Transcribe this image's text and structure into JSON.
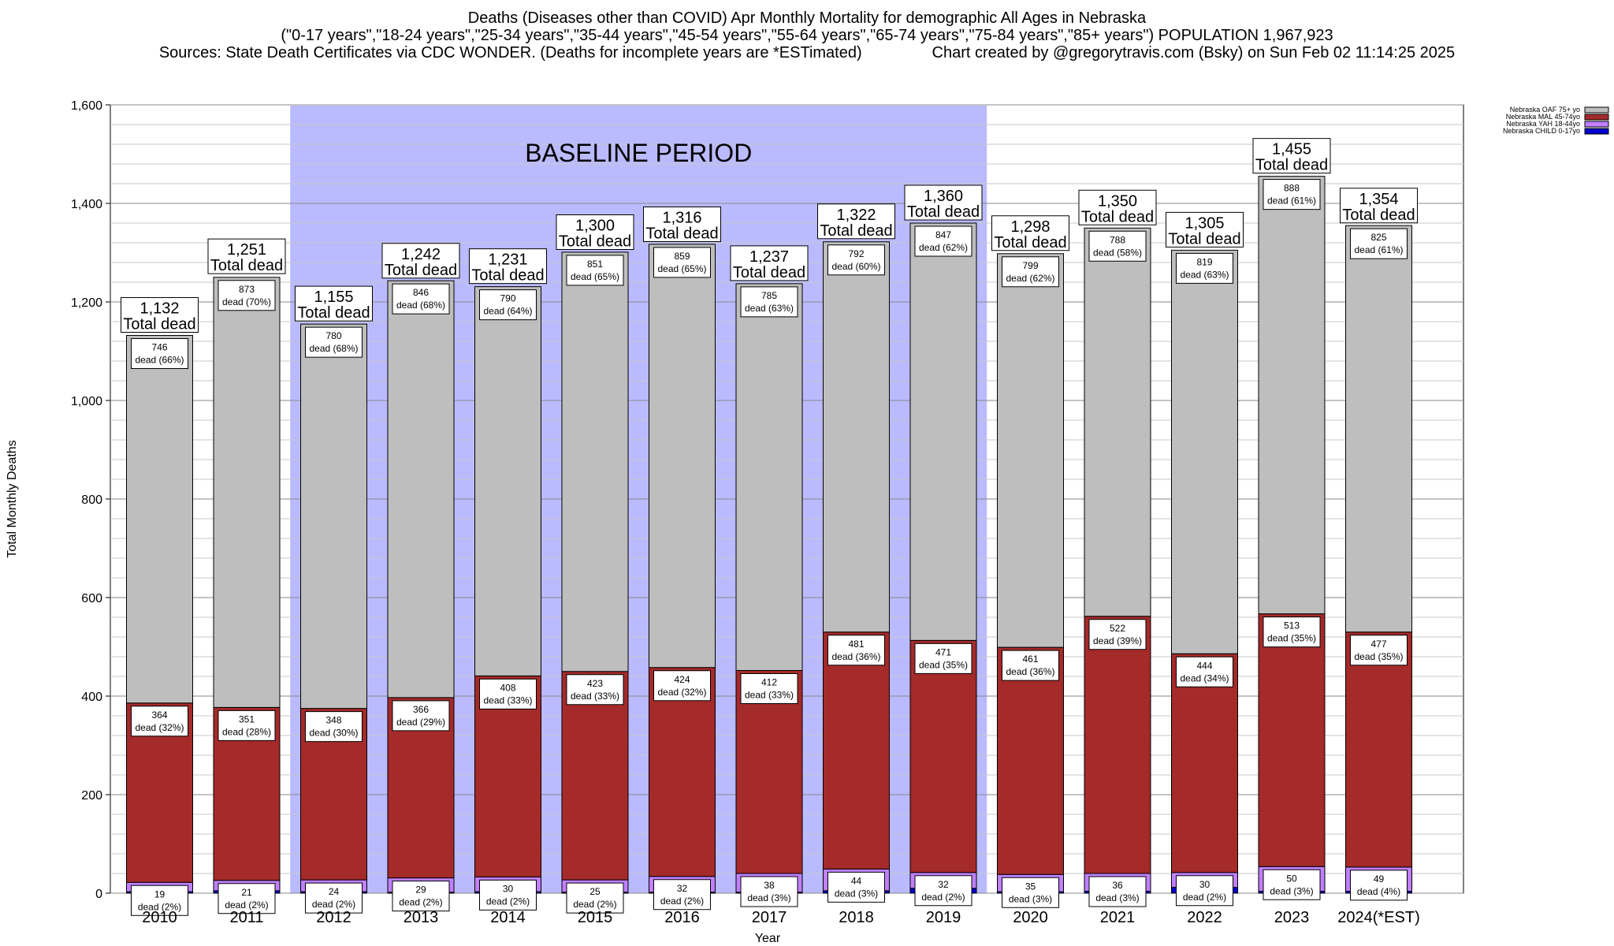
{
  "header": {
    "title": "Deaths (Diseases other than COVID) Apr Monthly Mortality for demographic All Ages in Nebraska",
    "subtitle": "(\"0-17 years\",\"18-24 years\",\"25-34 years\",\"35-44 years\",\"45-54 years\",\"55-64 years\",\"65-74 years\",\"75-84 years\",\"85+ years\") POPULATION 1,967,923",
    "sources": "Sources: State Death Certificates via CDC WONDER. (Deaths for incomplete years are *ESTimated)",
    "credit": "Chart created by @gregorytravis.com (Bsky) on Sun Feb 02 11:14:25 2025"
  },
  "colors": {
    "oaf": "#bebebe",
    "mal": "#a52a2a",
    "yah": "#c080ff",
    "child": "#0000cd",
    "baseline": "#babaff"
  },
  "chart_data": {
    "type": "bar",
    "stacked": true,
    "xlabel": "Year",
    "ylabel": "Total Monthly Deaths",
    "ylim": [
      0,
      1600
    ],
    "yticks": [
      0,
      200,
      400,
      600,
      800,
      1000,
      1200,
      1400,
      1600
    ],
    "ytick_labels": [
      "0",
      "200",
      "400",
      "600",
      "800",
      "1,000",
      "1,200",
      "1,400",
      "1,600"
    ],
    "grid": true,
    "legend_position": "top-right",
    "baseline_label": "BASELINE PERIOD",
    "baseline_range": [
      "2012",
      "2019"
    ],
    "categories": [
      "2010",
      "2011",
      "2012",
      "2013",
      "2014",
      "2015",
      "2016",
      "2017",
      "2018",
      "2019",
      "2020",
      "2021",
      "2022",
      "2023",
      "2024(*EST)"
    ],
    "totals": [
      1132,
      1251,
      1155,
      1242,
      1231,
      1300,
      1316,
      1237,
      1322,
      1360,
      1298,
      1350,
      1305,
      1455,
      1354
    ],
    "total_labels": [
      "1,132",
      "1,251",
      "1,155",
      "1,242",
      "1,231",
      "1,300",
      "1,316",
      "1,237",
      "1,322",
      "1,360",
      "1,298",
      "1,350",
      "1,305",
      "1,455",
      "1,354"
    ],
    "total_caption": "Total dead",
    "series": [
      {
        "name": "Nebraska CHILD 0-17yo",
        "color": "#0000cd",
        "values": [
          3,
          5,
          3,
          2,
          3,
          2,
          2,
          2,
          5,
          10,
          3,
          4,
          12,
          4,
          4
        ],
        "labels": [
          "",
          "",
          "",
          "",
          "",
          "",
          "",
          "",
          "",
          "",
          "",
          "",
          "",
          "",
          ""
        ]
      },
      {
        "name": "Nebraska YAH 18-44yo",
        "color": "#c080ff",
        "values": [
          19,
          21,
          24,
          29,
          30,
          25,
          32,
          38,
          44,
          32,
          35,
          36,
          30,
          50,
          49
        ],
        "labels": [
          "19\ndead (2%)",
          "21\ndead (2%)",
          "24\ndead (2%)",
          "29\ndead (2%)",
          "30\ndead (2%)",
          "25\ndead (2%)",
          "32\ndead (2%)",
          "38\ndead (3%)",
          "44\ndead (3%)",
          "32\ndead (2%)",
          "35\ndead (3%)",
          "36\ndead (3%)",
          "30\ndead (2%)",
          "50\ndead (3%)",
          "49\ndead (4%)"
        ]
      },
      {
        "name": "Nebraska MAL 45-74yo",
        "color": "#a52a2a",
        "values": [
          364,
          351,
          348,
          366,
          408,
          423,
          424,
          412,
          481,
          471,
          461,
          522,
          444,
          513,
          477
        ],
        "labels": [
          "364\ndead (32%)",
          "351\ndead (28%)",
          "348\ndead (30%)",
          "366\ndead (29%)",
          "408\ndead (33%)",
          "423\ndead (33%)",
          "424\ndead (32%)",
          "412\ndead (33%)",
          "481\ndead (36%)",
          "471\ndead (35%)",
          "461\ndead (36%)",
          "522\ndead (39%)",
          "444\ndead (34%)",
          "513\ndead (35%)",
          "477\ndead (35%)"
        ]
      },
      {
        "name": "Nebraska OAF 75+ yo",
        "color": "#bebebe",
        "values": [
          746,
          873,
          780,
          846,
          790,
          851,
          859,
          785,
          792,
          847,
          799,
          788,
          819,
          888,
          825
        ],
        "labels": [
          "746\ndead (66%)",
          "873\ndead (70%)",
          "780\ndead (68%)",
          "846\ndead (68%)",
          "790\ndead (64%)",
          "851\ndead (65%)",
          "859\ndead (65%)",
          "785\ndead (63%)",
          "792\ndead (60%)",
          "847\ndead (62%)",
          "799\ndead (62%)",
          "788\ndead (58%)",
          "819\ndead (63%)",
          "888\ndead (61%)",
          "825\ndead (61%)"
        ]
      }
    ]
  }
}
